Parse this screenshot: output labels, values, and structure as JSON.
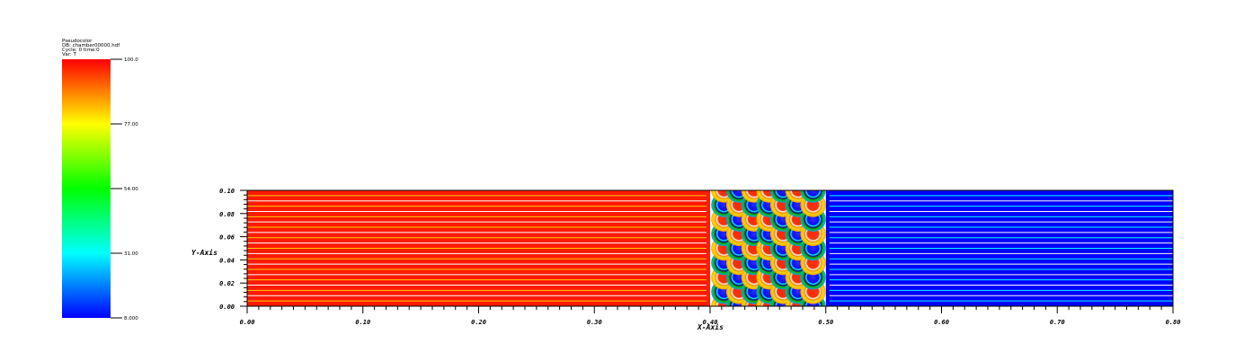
{
  "header": {
    "line1": "Pseudocolor",
    "line2": "DB: chamber00000.hdf",
    "line3": "Cycle: 0        time:0",
    "line4": "Var: T"
  },
  "legend": {
    "tick_labels": [
      "100.0",
      "77.00",
      "54.00",
      "31.00",
      "8.000"
    ],
    "colormap": [
      "#0000ff",
      "#00ffff",
      "#00ff00",
      "#ffff00",
      "#ff0000"
    ]
  },
  "chart_data": {
    "type": "heatmap",
    "variable": "T",
    "xlabel": "X-Axis",
    "ylabel": "Y-Axis",
    "xlim": [
      0.0,
      0.8
    ],
    "ylim": [
      0.0,
      0.1
    ],
    "x_ticks": [
      "0.00",
      "0.10",
      "0.20",
      "0.30",
      "0.40",
      "0.50",
      "0.60",
      "0.70",
      "0.80"
    ],
    "y_ticks": [
      "0.00",
      "0.02",
      "0.04",
      "0.06",
      "0.08",
      "0.10"
    ],
    "value_range": [
      8.0,
      100.0
    ],
    "regions": [
      {
        "x_from": 0.0,
        "x_to": 0.4,
        "value": 100.0
      },
      {
        "x_from": 0.4,
        "x_to": 0.5,
        "value": "checkerboard"
      },
      {
        "x_from": 0.5,
        "x_to": 0.8,
        "value": 8.0
      }
    ],
    "checker_centers_x": [
      0.412,
      0.425,
      0.438,
      0.451,
      0.463,
      0.476,
      0.489
    ],
    "checker_centers_y": [
      0.0,
      0.0125,
      0.025,
      0.0375,
      0.05,
      0.0625,
      0.075,
      0.0875,
      0.1
    ]
  }
}
